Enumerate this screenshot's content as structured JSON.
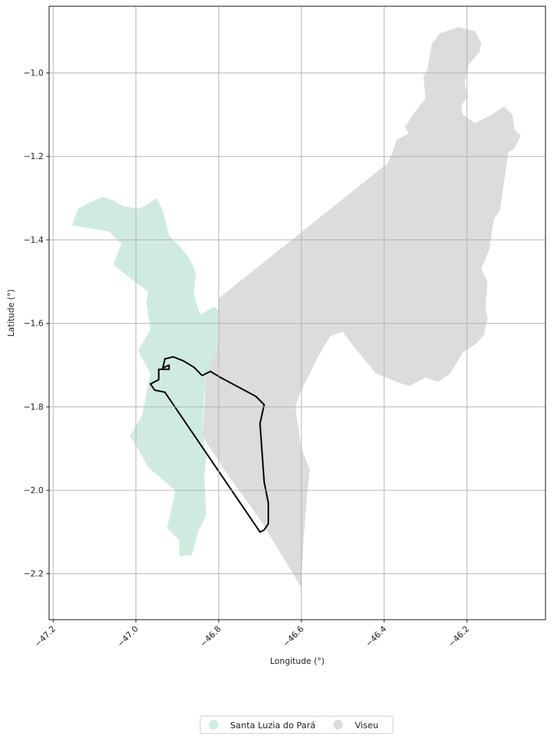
{
  "chart_data": {
    "type": "map",
    "xlabel": "Longitude (°)",
    "ylabel": "Latitude (°)",
    "xlim": [
      -47.21,
      -46.01
    ],
    "ylim": [
      -2.31,
      -0.84
    ],
    "x_ticks": [
      -47.2,
      -47.0,
      -46.8,
      -46.6,
      -46.4,
      -46.2
    ],
    "y_ticks": [
      -1.0,
      -1.2,
      -1.4,
      -1.6,
      -1.8,
      -2.0,
      -2.2
    ],
    "x_tick_labels": [
      "−47.2",
      "−47.0",
      "−46.8",
      "−46.6",
      "−46.4",
      "−46.2"
    ],
    "y_tick_labels": [
      "−1.0",
      "−1.2",
      "−1.4",
      "−1.6",
      "−1.8",
      "−2.0",
      "−2.2"
    ],
    "grid": true,
    "legend_position": "bottom-center",
    "regions": [
      {
        "name": "Santa Luzia do Pará",
        "color": "#cfebdf",
        "polygon": [
          [
            -47.155,
            -1.365
          ],
          [
            -47.14,
            -1.325
          ],
          [
            -47.11,
            -1.31
          ],
          [
            -47.08,
            -1.297
          ],
          [
            -47.055,
            -1.305
          ],
          [
            -47.03,
            -1.32
          ],
          [
            -46.99,
            -1.325
          ],
          [
            -46.95,
            -1.3
          ],
          [
            -46.935,
            -1.33
          ],
          [
            -46.92,
            -1.39
          ],
          [
            -46.895,
            -1.415
          ],
          [
            -46.87,
            -1.445
          ],
          [
            -46.855,
            -1.48
          ],
          [
            -46.86,
            -1.53
          ],
          [
            -46.845,
            -1.58
          ],
          [
            -46.81,
            -1.56
          ],
          [
            -46.785,
            -1.585
          ],
          [
            -46.79,
            -1.64
          ],
          [
            -46.8,
            -1.7
          ],
          [
            -46.81,
            -1.75
          ],
          [
            -46.835,
            -1.77
          ],
          [
            -46.84,
            -1.86
          ],
          [
            -46.83,
            -1.92
          ],
          [
            -46.835,
            -1.97
          ],
          [
            -46.83,
            -2.06
          ],
          [
            -46.85,
            -2.1
          ],
          [
            -46.865,
            -2.155
          ],
          [
            -46.895,
            -2.158
          ],
          [
            -46.895,
            -2.12
          ],
          [
            -46.925,
            -2.09
          ],
          [
            -46.915,
            -2.05
          ],
          [
            -46.905,
            -2.0
          ],
          [
            -46.935,
            -1.975
          ],
          [
            -46.97,
            -1.945
          ],
          [
            -46.995,
            -1.9
          ],
          [
            -47.015,
            -1.87
          ],
          [
            -46.985,
            -1.82
          ],
          [
            -46.975,
            -1.77
          ],
          [
            -46.965,
            -1.72
          ],
          [
            -46.995,
            -1.665
          ],
          [
            -46.965,
            -1.615
          ],
          [
            -46.975,
            -1.55
          ],
          [
            -46.97,
            -1.525
          ],
          [
            -47.055,
            -1.46
          ],
          [
            -47.035,
            -1.41
          ],
          [
            -47.065,
            -1.38
          ],
          [
            -47.155,
            -1.365
          ]
        ]
      },
      {
        "name": "Viseu",
        "color": "#dcdcdc",
        "polygon": [
          [
            -46.8,
            -1.54
          ],
          [
            -46.39,
            -1.215
          ],
          [
            -46.38,
            -1.19
          ],
          [
            -46.37,
            -1.16
          ],
          [
            -46.34,
            -1.145
          ],
          [
            -46.35,
            -1.13
          ],
          [
            -46.33,
            -1.1
          ],
          [
            -46.3,
            -1.06
          ],
          [
            -46.305,
            -1.01
          ],
          [
            -46.295,
            -0.99
          ],
          [
            -46.285,
            -0.93
          ],
          [
            -46.265,
            -0.905
          ],
          [
            -46.22,
            -0.89
          ],
          [
            -46.18,
            -0.9
          ],
          [
            -46.165,
            -0.93
          ],
          [
            -46.17,
            -0.95
          ],
          [
            -46.195,
            -0.98
          ],
          [
            -46.205,
            -1.02
          ],
          [
            -46.2,
            -1.06
          ],
          [
            -46.215,
            -1.08
          ],
          [
            -46.21,
            -1.1
          ],
          [
            -46.235,
            -1.12
          ],
          [
            -46.23,
            -1.09
          ],
          [
            -46.24,
            -1.06
          ],
          [
            -46.225,
            -1.05
          ],
          [
            -46.215,
            -1.07
          ],
          [
            -46.21,
            -1.1
          ],
          [
            -46.18,
            -1.12
          ],
          [
            -46.14,
            -1.1
          ],
          [
            -46.11,
            -1.08
          ],
          [
            -46.09,
            -1.1
          ],
          [
            -46.085,
            -1.135
          ],
          [
            -46.07,
            -1.15
          ],
          [
            -46.085,
            -1.18
          ],
          [
            -46.1,
            -1.19
          ],
          [
            -46.11,
            -1.26
          ],
          [
            -46.12,
            -1.33
          ],
          [
            -46.135,
            -1.35
          ],
          [
            -46.145,
            -1.42
          ],
          [
            -46.165,
            -1.47
          ],
          [
            -46.15,
            -1.5
          ],
          [
            -46.155,
            -1.56
          ],
          [
            -46.15,
            -1.59
          ],
          [
            -46.16,
            -1.63
          ],
          [
            -46.18,
            -1.65
          ],
          [
            -46.21,
            -1.67
          ],
          [
            -46.24,
            -1.72
          ],
          [
            -46.27,
            -1.74
          ],
          [
            -46.3,
            -1.73
          ],
          [
            -46.34,
            -1.75
          ],
          [
            -46.37,
            -1.74
          ],
          [
            -46.42,
            -1.72
          ],
          [
            -46.47,
            -1.66
          ],
          [
            -46.5,
            -1.62
          ],
          [
            -46.53,
            -1.63
          ],
          [
            -46.56,
            -1.68
          ],
          [
            -46.58,
            -1.72
          ],
          [
            -46.6,
            -1.76
          ],
          [
            -46.615,
            -1.8
          ],
          [
            -46.6,
            -1.9
          ],
          [
            -46.58,
            -1.95
          ],
          [
            -46.59,
            -2.05
          ],
          [
            -46.6,
            -2.2
          ],
          [
            -46.6,
            -2.235
          ],
          [
            -46.62,
            -2.2
          ],
          [
            -46.7,
            -2.07
          ],
          [
            -46.78,
            -1.96
          ],
          [
            -46.84,
            -1.87
          ],
          [
            -46.83,
            -1.73
          ],
          [
            -46.8,
            -1.65
          ],
          [
            -46.8,
            -1.54
          ]
        ]
      }
    ],
    "outline_region": {
      "color": "#000000",
      "polygon": [
        [
          -46.935,
          -1.707
        ],
        [
          -46.93,
          -1.685
        ],
        [
          -46.91,
          -1.68
        ],
        [
          -46.885,
          -1.69
        ],
        [
          -46.86,
          -1.705
        ],
        [
          -46.84,
          -1.725
        ],
        [
          -46.82,
          -1.715
        ],
        [
          -46.795,
          -1.73
        ],
        [
          -46.71,
          -1.775
        ],
        [
          -46.69,
          -1.795
        ],
        [
          -46.7,
          -1.84
        ],
        [
          -46.695,
          -1.91
        ],
        [
          -46.69,
          -1.98
        ],
        [
          -46.68,
          -2.03
        ],
        [
          -46.68,
          -2.08
        ],
        [
          -46.69,
          -2.095
        ],
        [
          -46.7,
          -2.1
        ],
        [
          -46.93,
          -1.765
        ],
        [
          -46.955,
          -1.76
        ],
        [
          -46.965,
          -1.745
        ],
        [
          -46.945,
          -1.735
        ],
        [
          -46.945,
          -1.71
        ],
        [
          -46.92,
          -1.71
        ],
        [
          -46.92,
          -1.7
        ],
        [
          -46.935,
          -1.707
        ]
      ]
    }
  },
  "legend": {
    "items": [
      {
        "label": "Santa Luzia do Pará",
        "color": "#cfebdf"
      },
      {
        "label": "Viseu",
        "color": "#dcdcdc"
      }
    ]
  }
}
